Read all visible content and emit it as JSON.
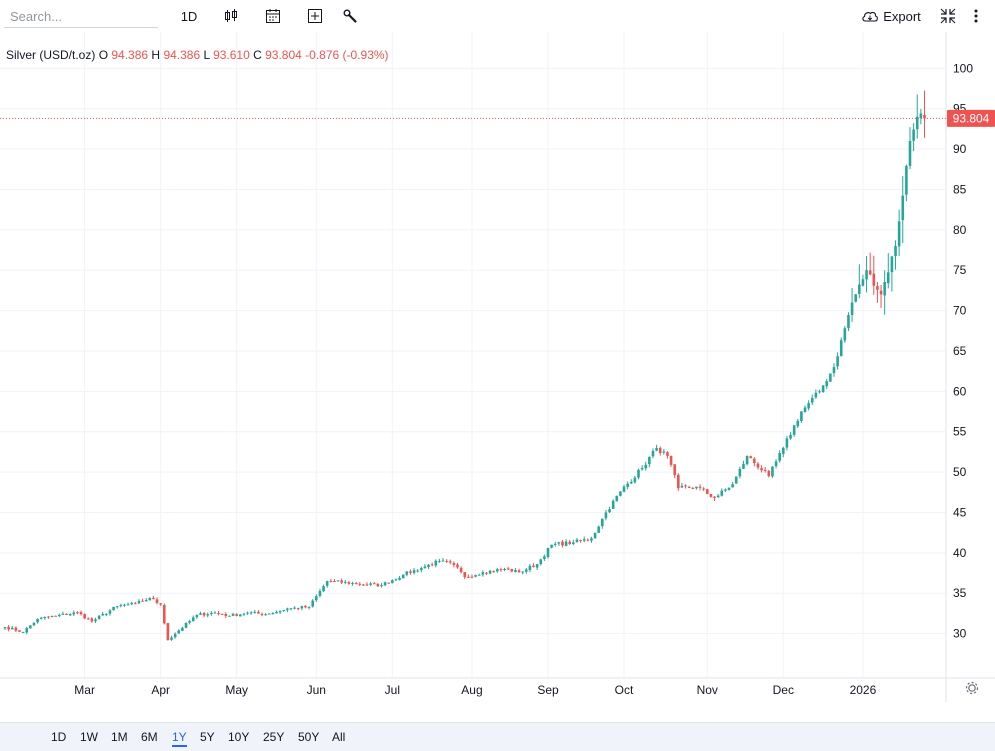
{
  "toolbar": {
    "search_placeholder": "Search...",
    "interval": "1D",
    "export_label": "Export",
    "icons": [
      "candles-icon",
      "calendar-icon",
      "add-indicator-icon",
      "wrench-icon",
      "cloud-download-icon",
      "collapse-icon",
      "more-icon"
    ]
  },
  "legend": {
    "symbol": "Silver (USD/t.oz)",
    "o_label": "O",
    "open": "94.386",
    "h_label": "H",
    "high": "94.386",
    "l_label": "L",
    "low": "93.610",
    "c_label": "C",
    "close": "93.804",
    "change": "-0.876 (-0.93%)"
  },
  "price_badge": "93.804",
  "colors": {
    "up": "#26a69a",
    "down": "#ef5350",
    "accent": "#2962ff",
    "grid": "#f0f3fa"
  },
  "ranges": [
    "1D",
    "1W",
    "1M",
    "6M",
    "1Y",
    "5Y",
    "10Y",
    "25Y",
    "50Y",
    "All"
  ],
  "active_range": "1Y",
  "chart_data": {
    "type": "candlestick",
    "title": "Silver (USD/t.oz)",
    "ylim": [
      24.5,
      104.5
    ],
    "yticks": [
      30,
      35,
      40,
      45,
      50,
      55,
      60,
      65,
      70,
      75,
      80,
      85,
      90,
      95,
      100
    ],
    "xticks": [
      {
        "label": "Mar",
        "index": 22
      },
      {
        "label": "Apr",
        "index": 43
      },
      {
        "label": "May",
        "index": 64
      },
      {
        "label": "Jun",
        "index": 86
      },
      {
        "label": "Jul",
        "index": 107
      },
      {
        "label": "Aug",
        "index": 129
      },
      {
        "label": "Sep",
        "index": 150
      },
      {
        "label": "Oct",
        "index": 171
      },
      {
        "label": "Nov",
        "index": 194
      },
      {
        "label": "Dec",
        "index": 215
      },
      {
        "label": "2026",
        "index": 237
      }
    ],
    "last_price": 93.804,
    "anchors": [
      [
        0,
        30.8
      ],
      [
        5,
        30.2
      ],
      [
        9,
        31.8
      ],
      [
        14,
        32.2
      ],
      [
        20,
        32.6
      ],
      [
        24,
        31.5
      ],
      [
        31,
        33.4
      ],
      [
        36,
        33.7
      ],
      [
        40,
        34.4
      ],
      [
        43,
        33.6
      ],
      [
        45,
        29.2
      ],
      [
        48,
        30.4
      ],
      [
        53,
        32.3
      ],
      [
        58,
        32.6
      ],
      [
        62,
        32.2
      ],
      [
        67,
        32.6
      ],
      [
        72,
        32.4
      ],
      [
        78,
        33.1
      ],
      [
        84,
        33.3
      ],
      [
        89,
        36.5
      ],
      [
        97,
        36.2
      ],
      [
        104,
        36.0
      ],
      [
        110,
        37.3
      ],
      [
        116,
        38.3
      ],
      [
        120,
        39.0
      ],
      [
        124,
        38.5
      ],
      [
        127,
        37.0
      ],
      [
        132,
        37.6
      ],
      [
        138,
        38.0
      ],
      [
        142,
        37.6
      ],
      [
        147,
        38.6
      ],
      [
        151,
        41.0
      ],
      [
        157,
        41.3
      ],
      [
        162,
        41.8
      ],
      [
        166,
        45.0
      ],
      [
        170,
        47.6
      ],
      [
        176,
        50.5
      ],
      [
        180,
        53.0
      ],
      [
        183,
        52.0
      ],
      [
        186,
        48.0
      ],
      [
        191,
        48.2
      ],
      [
        196,
        46.8
      ],
      [
        201,
        48.5
      ],
      [
        205,
        52.0
      ],
      [
        211,
        49.5
      ],
      [
        215,
        53.0
      ],
      [
        220,
        57.5
      ],
      [
        225,
        60.0
      ],
      [
        229,
        63.0
      ],
      [
        234,
        71.0
      ],
      [
        238,
        75.0
      ],
      [
        242,
        72.0
      ],
      [
        246,
        78.0
      ],
      [
        250,
        91.0
      ],
      [
        252,
        94.0
      ],
      [
        253,
        94.4
      ],
      [
        254,
        93.8
      ]
    ]
  }
}
